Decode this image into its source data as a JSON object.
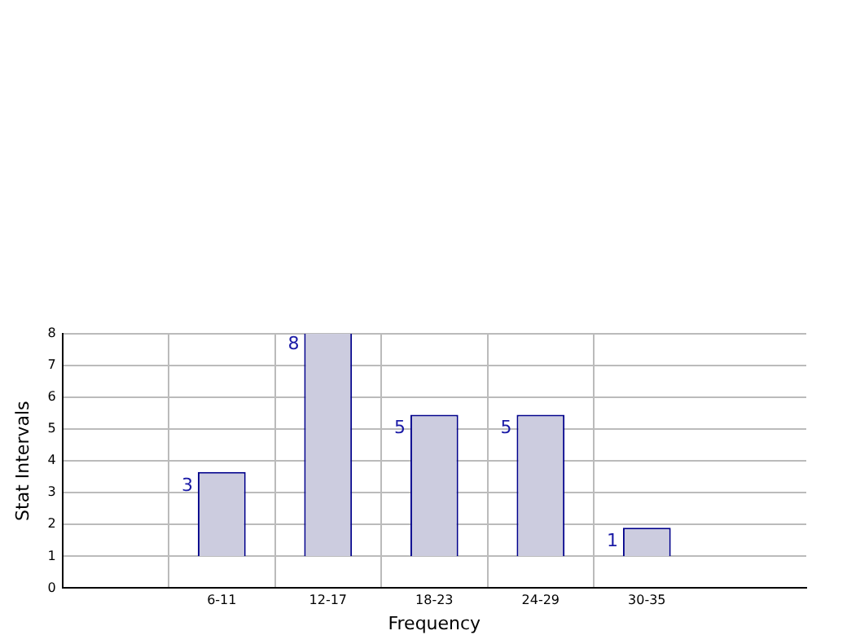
{
  "chart_data": {
    "type": "bar",
    "xlabel": "Frequency",
    "ylabel": "Stat Intervals",
    "categories": [
      null,
      "6-11",
      "12-17",
      "18-23",
      "24-29",
      "30-35",
      null
    ],
    "values": [
      null,
      2.65,
      7.1,
      4.45,
      4.45,
      0.9,
      null
    ],
    "base": [
      null,
      1,
      1,
      1,
      1,
      1,
      null
    ],
    "value_labels": [
      null,
      "3",
      "8",
      "5",
      "5",
      "1",
      null
    ],
    "color": "#ccccdf",
    "ylim": [
      0,
      8
    ],
    "yticks": [
      0,
      1,
      2,
      3,
      4,
      5,
      6,
      7,
      8
    ],
    "grid": true,
    "legend": false
  }
}
